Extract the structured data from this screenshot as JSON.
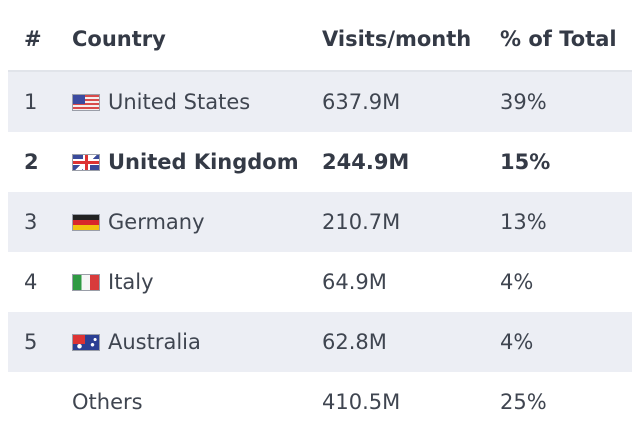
{
  "table": {
    "headers": {
      "rank": "#",
      "country": "Country",
      "visits": "Visits/month",
      "pct": "% of Total"
    },
    "rows": [
      {
        "rank": "1",
        "country": "United States",
        "visits": "637.9M",
        "pct": "39%",
        "flag": "us-flag-icon"
      },
      {
        "rank": "2",
        "country": "United Kingdom",
        "visits": "244.9M",
        "pct": "15%",
        "flag": "uk-flag-icon"
      },
      {
        "rank": "3",
        "country": "Germany",
        "visits": "210.7M",
        "pct": "13%",
        "flag": "germany-flag-icon"
      },
      {
        "rank": "4",
        "country": "Italy",
        "visits": "64.9M",
        "pct": "4%",
        "flag": "italy-flag-icon"
      },
      {
        "rank": "5",
        "country": "Australia",
        "visits": "62.8M",
        "pct": "4%",
        "flag": "australia-flag-icon"
      },
      {
        "rank": "",
        "country": "Others",
        "visits": "410.5M",
        "pct": "25%"
      }
    ]
  },
  "colors": {
    "row_shade": "#eceef4",
    "text": "#3f4550",
    "header_text": "#343a46"
  }
}
